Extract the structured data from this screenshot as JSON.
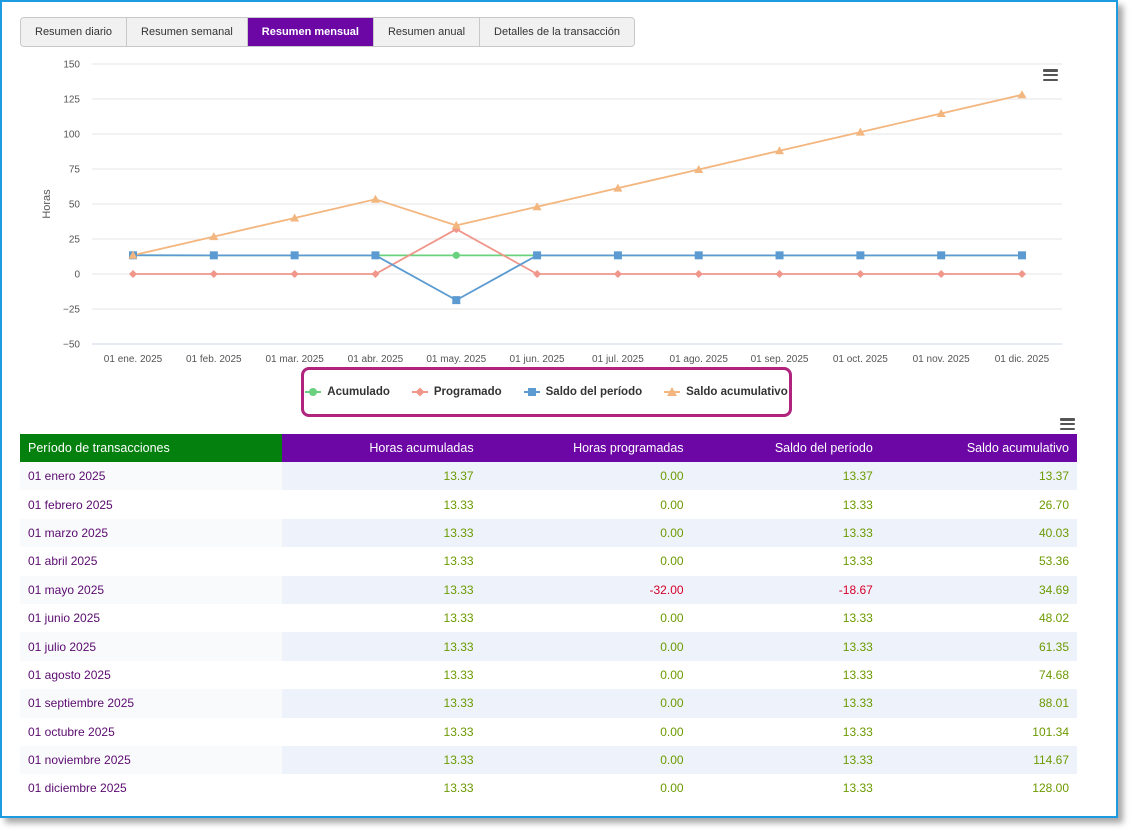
{
  "tabs": [
    {
      "label": "Resumen diario",
      "active": false
    },
    {
      "label": "Resumen semanal",
      "active": false
    },
    {
      "label": "Resumen mensual",
      "active": true
    },
    {
      "label": "Resumen anual",
      "active": false
    },
    {
      "label": "Detalles de la transacción",
      "active": false
    }
  ],
  "chart_data": {
    "type": "line",
    "ylabel": "Horas",
    "ylim": [
      -50,
      150
    ],
    "yticks": [
      150,
      125,
      100,
      75,
      50,
      25,
      0,
      -25,
      -50
    ],
    "ytick_labels": [
      "150",
      "125",
      "100",
      "75",
      "50",
      "25",
      "0",
      "−25",
      "−50"
    ],
    "grid": true,
    "legend_position": "bottom",
    "categories": [
      "01 ene. 2025",
      "01 feb. 2025",
      "01 mar. 2025",
      "01 abr. 2025",
      "01 may. 2025",
      "01 jun. 2025",
      "01 jul. 2025",
      "01 ago. 2025",
      "01 sep. 2025",
      "01 oct. 2025",
      "01 nov. 2025",
      "01 dic. 2025"
    ],
    "series": [
      {
        "name": "Acumulado",
        "color": "#6ad17f",
        "marker": "circle",
        "values": [
          13.37,
          13.33,
          13.33,
          13.33,
          13.33,
          13.33,
          13.33,
          13.33,
          13.33,
          13.33,
          13.33,
          13.33
        ]
      },
      {
        "name": "Programado",
        "color": "#f0968a",
        "marker": "diamond",
        "values": [
          0,
          0,
          0,
          0,
          32,
          0,
          0,
          0,
          0,
          0,
          0,
          0
        ]
      },
      {
        "name": "Saldo del período",
        "color": "#5b9bd1",
        "marker": "square",
        "values": [
          13.37,
          13.33,
          13.33,
          13.33,
          -18.67,
          13.33,
          13.33,
          13.33,
          13.33,
          13.33,
          13.33,
          13.33
        ]
      },
      {
        "name": "Saldo acumulativo",
        "color": "#f3b67f",
        "marker": "triangle",
        "values": [
          13.37,
          26.7,
          40.03,
          53.36,
          34.69,
          48.02,
          61.35,
          74.68,
          88.01,
          101.34,
          114.67,
          128.0
        ]
      }
    ]
  },
  "table": {
    "headers": [
      "Período de transacciones",
      "Horas acumuladas",
      "Horas programadas",
      "Saldo del período",
      "Saldo acumulativo"
    ],
    "rows": [
      [
        "01 enero 2025",
        "13.37",
        "0.00",
        "13.37",
        "13.37"
      ],
      [
        "01 febrero 2025",
        "13.33",
        "0.00",
        "13.33",
        "26.70"
      ],
      [
        "01 marzo 2025",
        "13.33",
        "0.00",
        "13.33",
        "40.03"
      ],
      [
        "01 abril 2025",
        "13.33",
        "0.00",
        "13.33",
        "53.36"
      ],
      [
        "01 mayo 2025",
        "13.33",
        "-32.00",
        "-18.67",
        "34.69"
      ],
      [
        "01 junio 2025",
        "13.33",
        "0.00",
        "13.33",
        "48.02"
      ],
      [
        "01 julio 2025",
        "13.33",
        "0.00",
        "13.33",
        "61.35"
      ],
      [
        "01 agosto 2025",
        "13.33",
        "0.00",
        "13.33",
        "74.68"
      ],
      [
        "01 septiembre 2025",
        "13.33",
        "0.00",
        "13.33",
        "88.01"
      ],
      [
        "01 octubre 2025",
        "13.33",
        "0.00",
        "13.33",
        "101.34"
      ],
      [
        "01 noviembre 2025",
        "13.33",
        "0.00",
        "13.33",
        "114.67"
      ],
      [
        "01 diciembre 2025",
        "13.33",
        "0.00",
        "13.33",
        "128.00"
      ]
    ]
  },
  "colors": {
    "tab_active": "#6c07a6",
    "header_green": "#04800e",
    "header_purple": "#6c07a6",
    "legend_highlight": "#b0247d",
    "positive_value": "#6c9a00",
    "negative_value": "#d6002a",
    "frame_border": "#1d9be0"
  },
  "icons": {
    "chart_menu": "hamburger-menu-icon",
    "table_menu": "hamburger-menu-icon"
  }
}
